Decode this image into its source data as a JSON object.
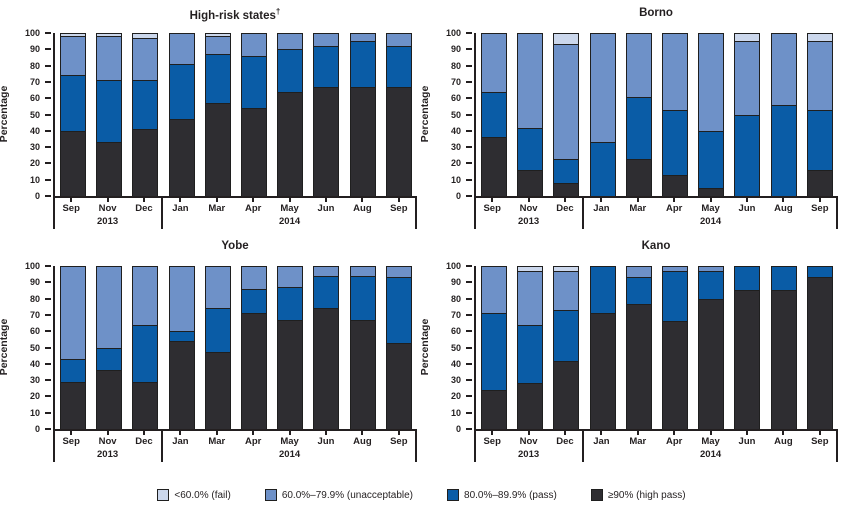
{
  "figure": {
    "ylabel": "Percentage",
    "yticks": [
      0,
      10,
      20,
      30,
      40,
      50,
      60,
      70,
      80,
      90,
      100
    ],
    "months": [
      "Sep",
      "Nov",
      "Dec",
      "Jan",
      "Mar",
      "Apr",
      "May",
      "Jun",
      "Aug",
      "Sep"
    ],
    "year_groups": [
      {
        "label": "2013",
        "center_slot": 1.5,
        "boundary_slot": 3
      },
      {
        "label": "2014",
        "center_slot": 6.5,
        "boundary_slot": 10
      }
    ]
  },
  "legend": [
    {
      "name": "fail",
      "label": "<60.0% (fail)",
      "color": "#cbd7ec"
    },
    {
      "name": "unacceptable",
      "label": "60.0%–79.9% (unacceptable)",
      "color": "#6e91c8"
    },
    {
      "name": "pass",
      "label": "80.0%–89.9% (pass)",
      "color": "#0a5ca6"
    },
    {
      "name": "high-pass",
      "label": "≥90% (high pass)",
      "color": "#2e2d31"
    }
  ],
  "colors": {
    "fail": "#cbd7ec",
    "unacceptable": "#6e91c8",
    "pass": "#0a5ca6",
    "high_pass": "#2e2d31",
    "axis": "#231f20"
  },
  "chart_data": [
    {
      "type": "bar",
      "stacked": true,
      "title": "High-risk states",
      "title_sup": "†",
      "ylabel": "Percentage",
      "ylim": [
        0,
        100
      ],
      "categories": [
        "Sep",
        "Nov",
        "Dec",
        "Jan",
        "Mar",
        "Apr",
        "May",
        "Jun",
        "Aug",
        "Sep"
      ],
      "series": [
        {
          "name": "≥90% (high pass)",
          "color": "#2e2d31",
          "values": [
            40,
            33,
            41,
            47,
            57,
            54,
            64,
            67,
            67,
            67
          ]
        },
        {
          "name": "80.0%–89.9% (pass)",
          "color": "#0a5ca6",
          "values": [
            34,
            38,
            30,
            34,
            30,
            32,
            26,
            25,
            28,
            25
          ]
        },
        {
          "name": "60.0%–79.9% (unacceptable)",
          "color": "#6e91c8",
          "values": [
            24,
            27,
            26,
            19,
            11,
            14,
            10,
            8,
            5,
            8
          ]
        },
        {
          "name": "<60.0% (fail)",
          "color": "#cbd7ec",
          "values": [
            2,
            2,
            3,
            0,
            2,
            0,
            0,
            0,
            0,
            0
          ]
        }
      ]
    },
    {
      "type": "bar",
      "stacked": true,
      "title": "Borno",
      "title_sup": "",
      "ylabel": "Percentage",
      "ylim": [
        0,
        100
      ],
      "categories": [
        "Sep",
        "Nov",
        "Dec",
        "Jan",
        "Mar",
        "Apr",
        "May",
        "Jun",
        "Aug",
        "Sep"
      ],
      "series": [
        {
          "name": "≥90% (high pass)",
          "color": "#2e2d31",
          "values": [
            36,
            16,
            8,
            0,
            23,
            13,
            5,
            0,
            0,
            16
          ]
        },
        {
          "name": "80.0%–89.9% (pass)",
          "color": "#0a5ca6",
          "values": [
            28,
            26,
            15,
            33,
            38,
            40,
            35,
            50,
            56,
            37
          ]
        },
        {
          "name": "60.0%–79.9% (unacceptable)",
          "color": "#6e91c8",
          "values": [
            36,
            58,
            70,
            67,
            39,
            47,
            60,
            45,
            44,
            42
          ]
        },
        {
          "name": "<60.0% (fail)",
          "color": "#cbd7ec",
          "values": [
            0,
            0,
            7,
            0,
            0,
            0,
            0,
            5,
            0,
            5
          ]
        }
      ]
    },
    {
      "type": "bar",
      "stacked": true,
      "title": "Yobe",
      "title_sup": "",
      "ylabel": "Percentage",
      "ylim": [
        0,
        100
      ],
      "categories": [
        "Sep",
        "Nov",
        "Dec",
        "Jan",
        "Mar",
        "Apr",
        "May",
        "Jun",
        "Aug",
        "Sep"
      ],
      "series": [
        {
          "name": "≥90% (high pass)",
          "color": "#2e2d31",
          "values": [
            29,
            36,
            29,
            54,
            47,
            71,
            67,
            74,
            67,
            53
          ]
        },
        {
          "name": "80.0%–89.9% (pass)",
          "color": "#0a5ca6",
          "values": [
            14,
            14,
            35,
            6,
            27,
            15,
            20,
            20,
            27,
            40
          ]
        },
        {
          "name": "60.0%–79.9% (unacceptable)",
          "color": "#6e91c8",
          "values": [
            57,
            50,
            36,
            40,
            26,
            14,
            13,
            6,
            6,
            7
          ]
        },
        {
          "name": "<60.0% (fail)",
          "color": "#cbd7ec",
          "values": [
            0,
            0,
            0,
            0,
            0,
            0,
            0,
            0,
            0,
            0
          ]
        }
      ]
    },
    {
      "type": "bar",
      "stacked": true,
      "title": "Kano",
      "title_sup": "",
      "ylabel": "Percentage",
      "ylim": [
        0,
        100
      ],
      "categories": [
        "Sep",
        "Nov",
        "Dec",
        "Jan",
        "Mar",
        "Apr",
        "May",
        "Jun",
        "Aug",
        "Sep"
      ],
      "series": [
        {
          "name": "≥90% (high pass)",
          "color": "#2e2d31",
          "values": [
            24,
            28,
            42,
            71,
            77,
            66,
            80,
            85,
            85,
            93
          ]
        },
        {
          "name": "80.0%–89.9% (pass)",
          "color": "#0a5ca6",
          "values": [
            47,
            36,
            31,
            29,
            16,
            31,
            17,
            15,
            15,
            7
          ]
        },
        {
          "name": "60.0%–79.9% (unacceptable)",
          "color": "#6e91c8",
          "values": [
            29,
            33,
            24,
            0,
            7,
            3,
            3,
            0,
            0,
            0
          ]
        },
        {
          "name": "<60.0% (fail)",
          "color": "#cbd7ec",
          "values": [
            0,
            3,
            3,
            0,
            0,
            0,
            0,
            0,
            0,
            0
          ]
        }
      ]
    }
  ]
}
